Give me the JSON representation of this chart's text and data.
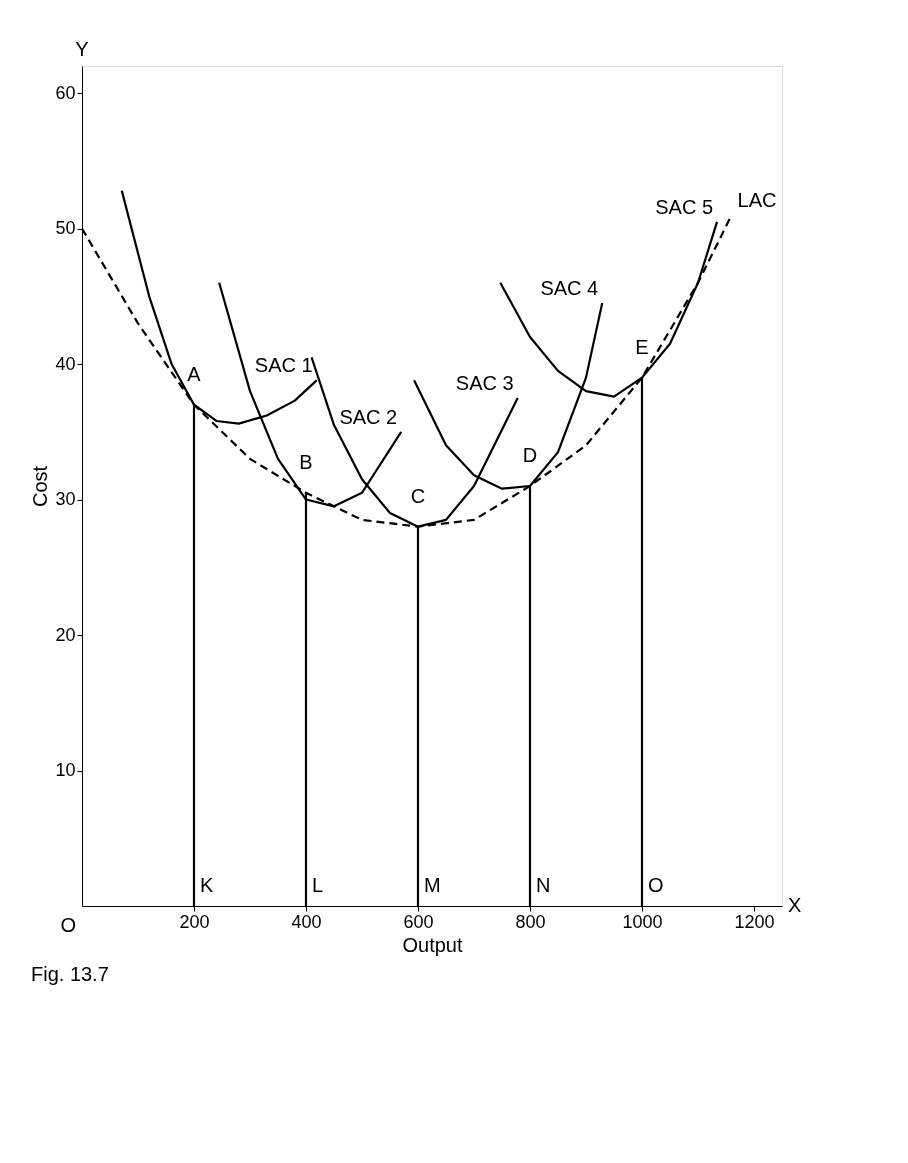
{
  "chart_data": {
    "type": "line",
    "xlabel": "Output",
    "ylabel": "Cost",
    "xlim": [
      0,
      1250
    ],
    "ylim": [
      0,
      62
    ],
    "xticks": [
      200,
      400,
      600,
      800,
      1000,
      1200
    ],
    "yticks": [
      10,
      20,
      30,
      40,
      50,
      60
    ],
    "grid": false,
    "marker": "none",
    "line_style": "solid",
    "series": [
      {
        "name": "SAC 1",
        "color": "#000000",
        "x": [
          71,
          120,
          160,
          200,
          240,
          280,
          330,
          380,
          419
        ],
        "values": [
          52.8,
          45,
          40,
          37,
          35.8,
          35.6,
          36.2,
          37.3,
          38.8
        ]
      },
      {
        "name": "SAC 2",
        "color": "#000000",
        "x": [
          245,
          300,
          350,
          400,
          450,
          500,
          570
        ],
        "values": [
          46,
          38,
          33,
          30,
          29.5,
          30.5,
          35
        ]
      },
      {
        "name": "SAC 3",
        "color": "#000000",
        "x": [
          410,
          450,
          500,
          550,
          600,
          650,
          700,
          778
        ],
        "values": [
          40.5,
          35.5,
          31.5,
          29,
          28,
          28.5,
          31,
          37.5
        ]
      },
      {
        "name": "SAC 4",
        "color": "#000000",
        "x": [
          593,
          650,
          700,
          750,
          800,
          850,
          900,
          929
        ],
        "values": [
          38.8,
          34,
          31.8,
          30.8,
          31,
          33.5,
          39,
          44.5
        ]
      },
      {
        "name": "SAC 5",
        "color": "#000000",
        "x": [
          747,
          800,
          850,
          900,
          950,
          1000,
          1050,
          1100,
          1134
        ],
        "values": [
          46,
          42,
          39.5,
          38,
          37.6,
          39,
          41.5,
          46,
          50.5
        ]
      },
      {
        "name": "LAC",
        "color": "#000000",
        "line_style": "dashed",
        "x": [
          0,
          100,
          200,
          300,
          400,
          500,
          600,
          700,
          800,
          900,
          1000,
          1100,
          1160
        ],
        "values": [
          50,
          43,
          37,
          33,
          30.5,
          28.5,
          28,
          28.5,
          31,
          34,
          39,
          46,
          51
        ]
      },
      {
        "color": "#000000",
        "x": [
          200,
          200
        ],
        "values": [
          0,
          37
        ]
      },
      {
        "color": "#000000",
        "x": [
          400,
          400
        ],
        "values": [
          0,
          30.5
        ]
      },
      {
        "color": "#000000",
        "x": [
          600,
          600
        ],
        "values": [
          0,
          28
        ]
      },
      {
        "color": "#000000",
        "x": [
          800,
          800
        ],
        "values": [
          0,
          31
        ]
      },
      {
        "color": "#000000",
        "x": [
          1000,
          1000
        ],
        "values": [
          0,
          39
        ]
      }
    ],
    "annotations": [
      {
        "text": "A",
        "x": 200,
        "y": 37
      },
      {
        "text": "B",
        "x": 400,
        "y": 30.5
      },
      {
        "text": "C",
        "x": 600,
        "y": 28
      },
      {
        "text": "D",
        "x": 800,
        "y": 31
      },
      {
        "text": "E",
        "x": 1000,
        "y": 39
      },
      {
        "text": "K",
        "x": 200,
        "y": 0
      },
      {
        "text": "L",
        "x": 400,
        "y": 0
      },
      {
        "text": "M",
        "x": 600,
        "y": 0
      },
      {
        "text": "N",
        "x": 800,
        "y": 0
      },
      {
        "text": "O",
        "x": 1000,
        "y": 0
      },
      "O",
      "Y",
      "X",
      "Fig. 13.7"
    ]
  }
}
